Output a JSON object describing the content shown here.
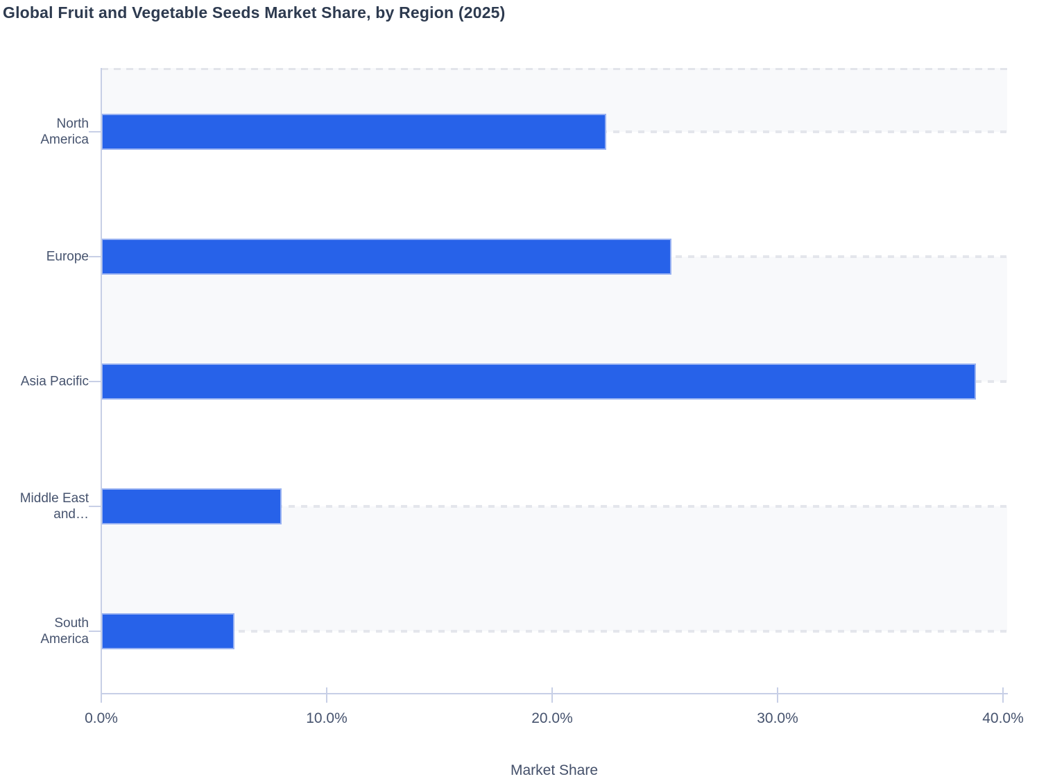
{
  "title": "Global Fruit and Vegetable Seeds Market Share, by Region (2025)",
  "chart_data": {
    "type": "bar",
    "orientation": "horizontal",
    "title": "Global Fruit and Vegetable Seeds Market Share, by Region (2025)",
    "categories": [
      "North America",
      "Europe",
      "Asia Pacific",
      "Middle East and…",
      "South America"
    ],
    "category_label_lines": [
      [
        "North",
        "America"
      ],
      [
        "Europe"
      ],
      [
        "Asia Pacific"
      ],
      [
        "Middle East",
        "and…"
      ],
      [
        "South",
        "America"
      ]
    ],
    "values": [
      22.4,
      25.3,
      38.8,
      8.0,
      5.9
    ],
    "unit": "%",
    "xlabel": "Market Share",
    "ylabel": "",
    "xlim": [
      0,
      40
    ],
    "x_ticks": [
      {
        "value": 0,
        "label": "0.0%"
      },
      {
        "value": 10,
        "label": "10.0%"
      },
      {
        "value": 20,
        "label": "20.0%"
      },
      {
        "value": 30,
        "label": "30.0%"
      },
      {
        "value": 40,
        "label": "40.0%"
      }
    ],
    "grid": "horizontal dashed gridlines at category centers, alternating row shading",
    "legend": "none"
  },
  "colors": {
    "bar_fill": "#2762e9",
    "bar_edge": "#99b2f2",
    "band_fill": "#f8f9fb",
    "grid_color": "#e4e6ec",
    "axis_color": "#c7cfe6",
    "tick_label_color": "#46536e",
    "title_color": "#2d3a4f",
    "background": "#ffffff"
  }
}
